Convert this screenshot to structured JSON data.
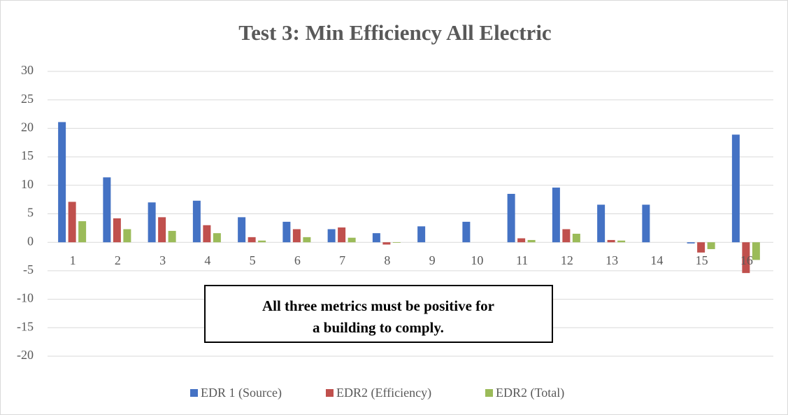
{
  "chart_data": {
    "type": "bar",
    "title": "Test 3: Min Efficiency All Electric",
    "categories": [
      "1",
      "2",
      "3",
      "4",
      "5",
      "6",
      "7",
      "8",
      "9",
      "10",
      "11",
      "12",
      "13",
      "14",
      "15",
      "16"
    ],
    "series": [
      {
        "name": "EDR 1 (Source)",
        "color": "#4472c4",
        "values": [
          21.1,
          11.4,
          7.0,
          7.3,
          4.4,
          3.6,
          2.3,
          1.6,
          2.8,
          3.6,
          8.5,
          9.6,
          6.6,
          6.6,
          -0.2,
          18.9
        ]
      },
      {
        "name": "EDR2 (Efficiency)",
        "color": "#c0504d",
        "values": [
          7.1,
          4.2,
          4.4,
          3.0,
          0.9,
          2.3,
          2.6,
          -0.4,
          0,
          0,
          0.7,
          2.3,
          0.4,
          0,
          -1.8,
          -5.4
        ]
      },
      {
        "name": "EDR2 (Total)",
        "color": "#9bbb59",
        "values": [
          3.7,
          2.3,
          2.0,
          1.6,
          0.3,
          0.9,
          0.8,
          -0.1,
          0,
          0,
          0.4,
          1.5,
          0.3,
          0,
          -1.2,
          -3.1
        ]
      }
    ],
    "ylim": [
      -20,
      30
    ],
    "yticks": [
      30,
      25,
      20,
      15,
      10,
      5,
      0,
      -5,
      -10,
      -15,
      -20
    ],
    "grid": true,
    "legend": "bottom",
    "annotation": [
      "All three metrics must be positive for",
      "a building to comply."
    ]
  }
}
